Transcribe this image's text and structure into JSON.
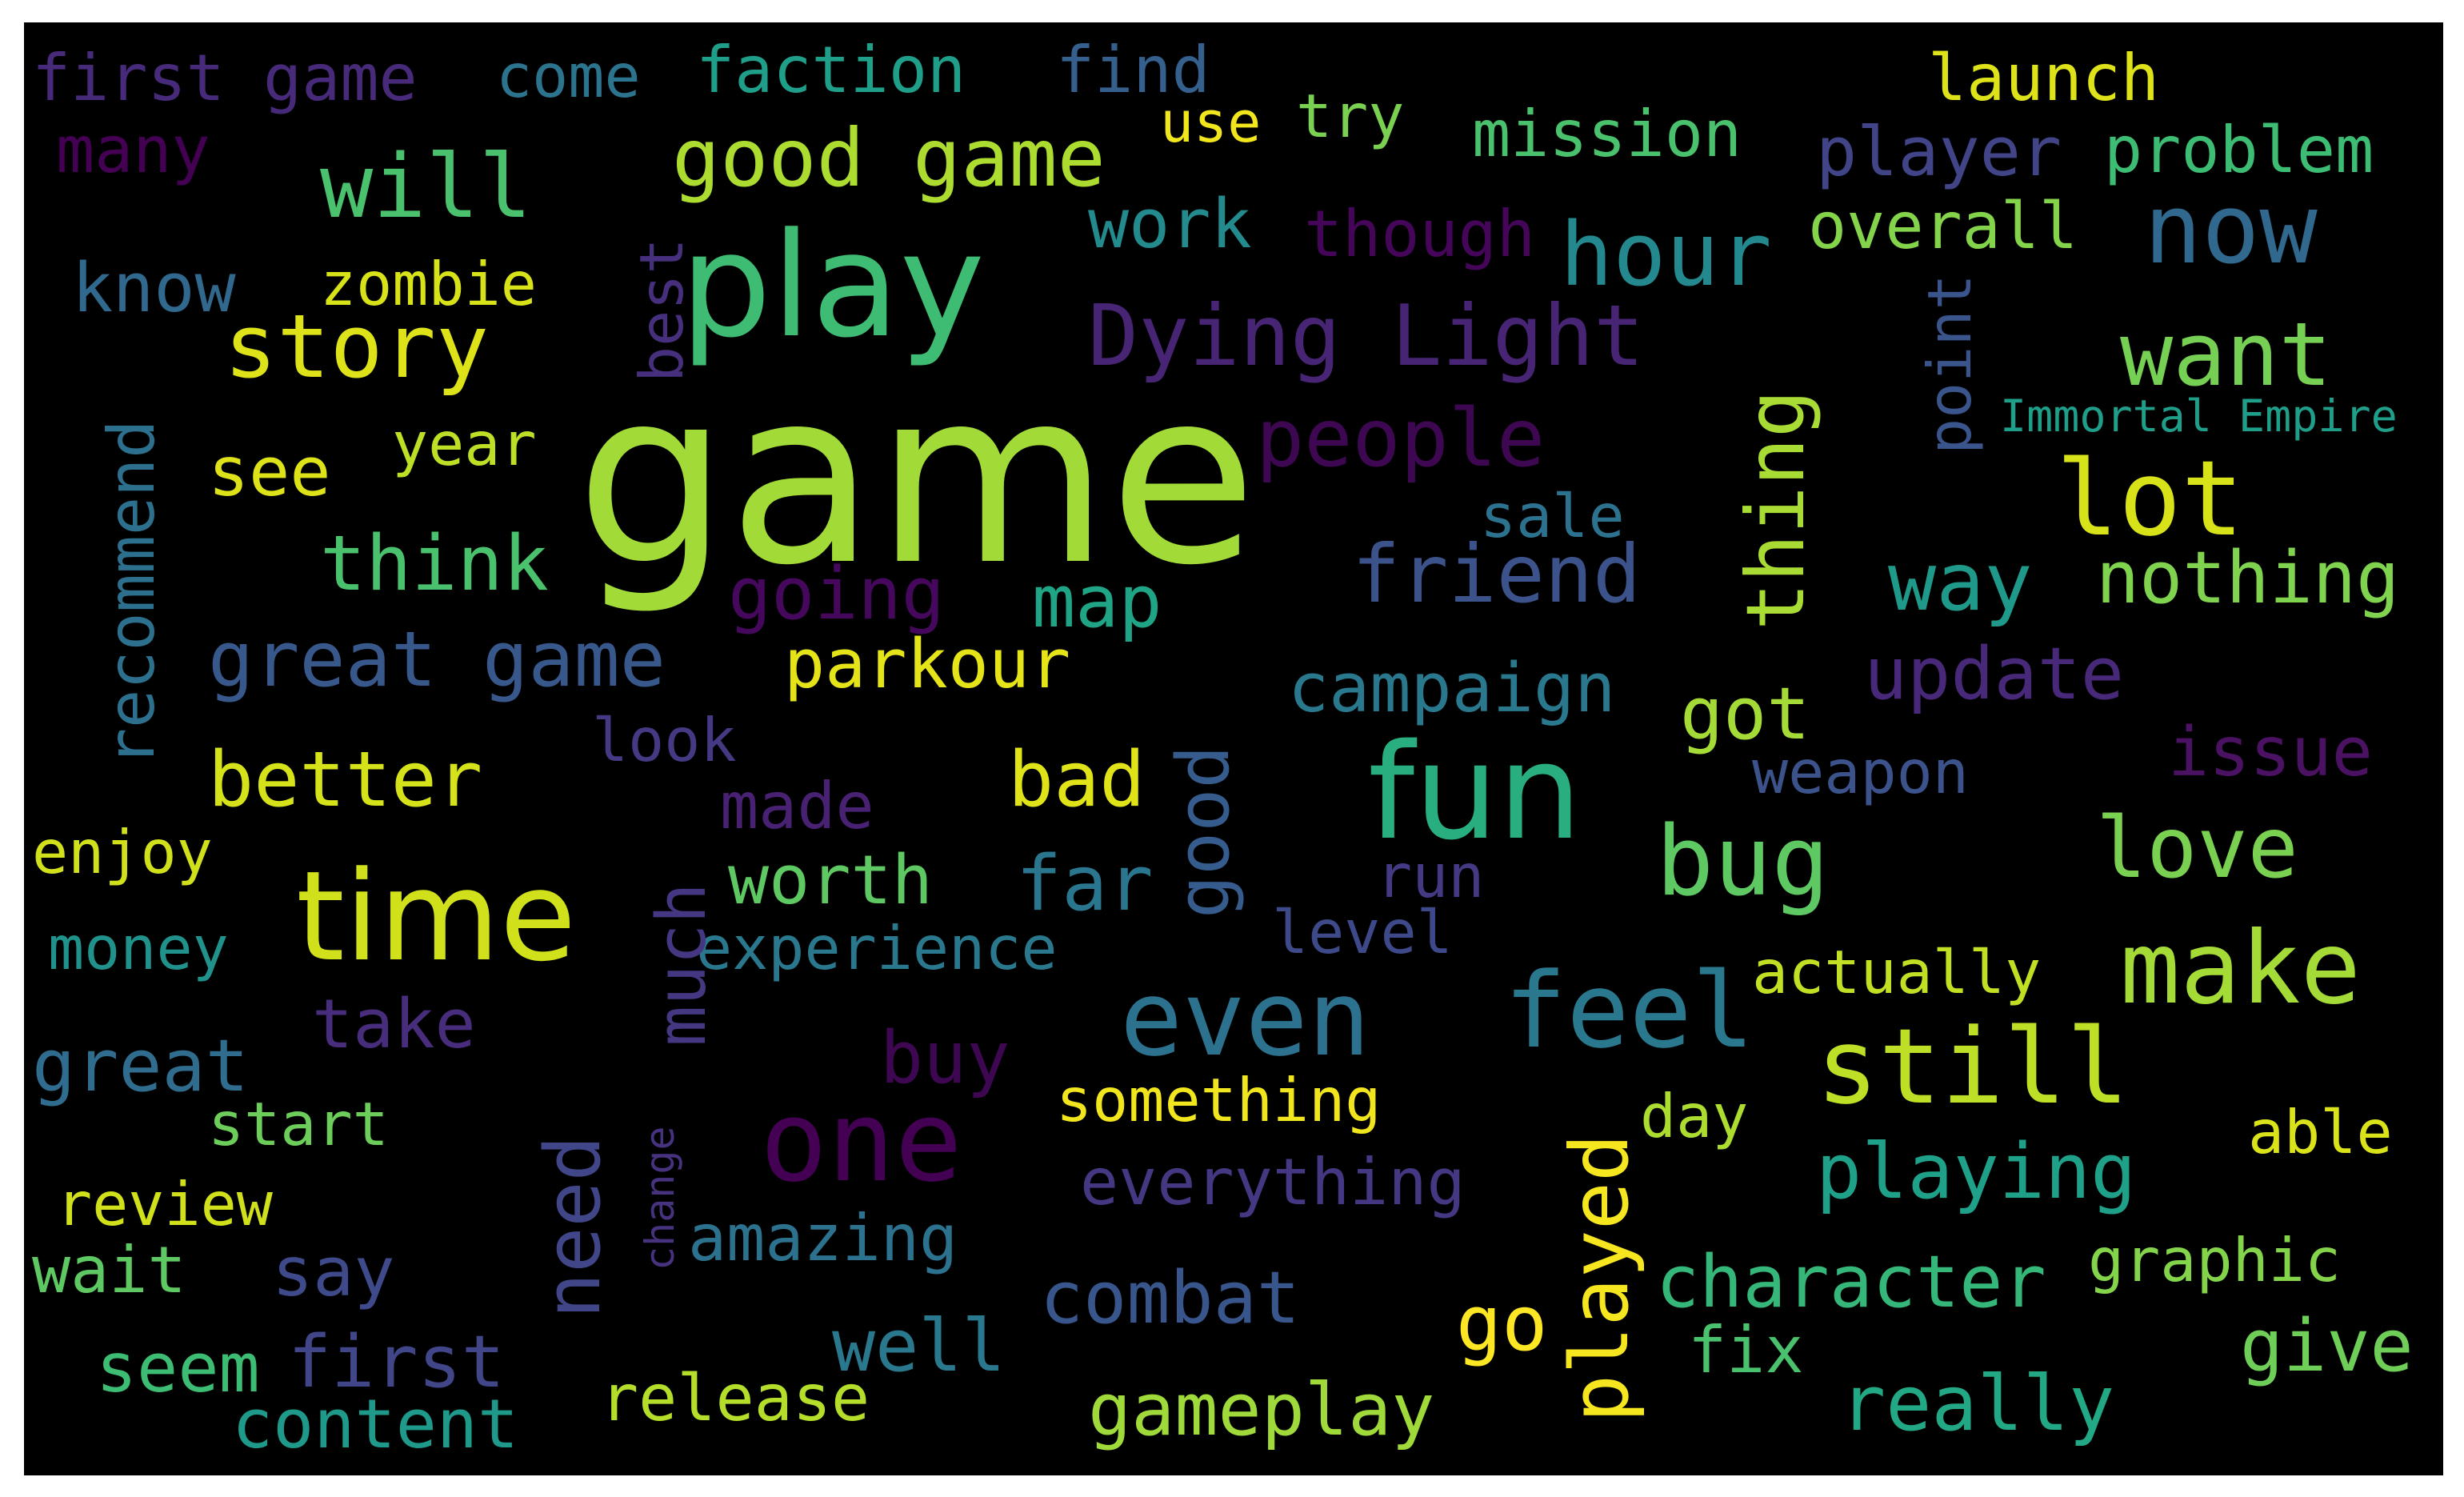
{
  "palette": {
    "background": "#000000",
    "page": "#ffffff"
  },
  "words": [
    {
      "text": "game",
      "color": "#a2da37"
    },
    {
      "text": "play",
      "color": "#3fbc73"
    },
    {
      "text": "fun",
      "color": "#29af7f"
    },
    {
      "text": "time",
      "color": "#d0e11c"
    },
    {
      "text": "one",
      "color": "#440154"
    },
    {
      "text": "even",
      "color": "#2c728e"
    },
    {
      "text": "feel",
      "color": "#2a788e"
    },
    {
      "text": "still",
      "color": "#bddf26"
    },
    {
      "text": "make",
      "color": "#a5db36"
    },
    {
      "text": "lot",
      "color": "#d8e219"
    },
    {
      "text": "now",
      "color": "#31688e"
    },
    {
      "text": "bug",
      "color": "#5ec962"
    },
    {
      "text": "story",
      "color": "#dde318"
    },
    {
      "text": "hour",
      "color": "#23898e"
    },
    {
      "text": "will",
      "color": "#4ac16d"
    },
    {
      "text": "want",
      "color": "#75d054"
    },
    {
      "text": "Dying Light",
      "color": "#482475"
    },
    {
      "text": "good game",
      "color": "#addc30"
    },
    {
      "text": "friend",
      "color": "#3b528b"
    },
    {
      "text": "think",
      "color": "#4ac16d"
    },
    {
      "text": "way",
      "color": "#1f9a8a"
    },
    {
      "text": "love",
      "color": "#7ad151"
    },
    {
      "text": "better",
      "color": "#d5e21a"
    },
    {
      "text": "people",
      "color": "#3e0751"
    },
    {
      "text": "great game",
      "color": "#38588c"
    },
    {
      "text": "map",
      "color": "#20a486"
    },
    {
      "text": "going",
      "color": "#46085c"
    },
    {
      "text": "nothing",
      "color": "#7fd34e"
    },
    {
      "text": "playing",
      "color": "#1fa088"
    },
    {
      "text": "far",
      "color": "#2a768e"
    },
    {
      "text": "worth",
      "color": "#5ec962"
    },
    {
      "text": "bad",
      "color": "#dfe318"
    },
    {
      "text": "got",
      "color": "#a5db36"
    },
    {
      "text": "great",
      "color": "#2f6c8e"
    },
    {
      "text": "take",
      "color": "#472d7b"
    },
    {
      "text": "buy",
      "color": "#3e0751"
    },
    {
      "text": "update",
      "color": "#482878"
    },
    {
      "text": "issue",
      "color": "#4b1163"
    },
    {
      "text": "campaign",
      "color": "#2a788e"
    },
    {
      "text": "parkour",
      "color": "#e5e419"
    },
    {
      "text": "work",
      "color": "#238a8d"
    },
    {
      "text": "story",
      "color": "#dde318"
    },
    {
      "text": "mission",
      "color": "#4ac16d"
    },
    {
      "text": "player",
      "color": "#414487"
    },
    {
      "text": "problem",
      "color": "#3dbc74"
    },
    {
      "text": "overall",
      "color": "#84d44b"
    },
    {
      "text": "launch",
      "color": "#dde318"
    },
    {
      "text": "faction",
      "color": "#1f9e89"
    },
    {
      "text": "find",
      "color": "#355f8d"
    },
    {
      "text": "first game",
      "color": "#472a7a"
    },
    {
      "text": "come",
      "color": "#2c738e"
    },
    {
      "text": "try",
      "color": "#7ad151"
    },
    {
      "text": "use",
      "color": "#f1e51d"
    },
    {
      "text": "many",
      "color": "#440154"
    },
    {
      "text": "know",
      "color": "#31688e"
    },
    {
      "text": "zombie",
      "color": "#d8e219"
    },
    {
      "text": "though",
      "color": "#450559"
    },
    {
      "text": "see",
      "color": "#dde318"
    },
    {
      "text": "year",
      "color": "#bddf26"
    },
    {
      "text": "sale",
      "color": "#2c728e"
    },
    {
      "text": "look",
      "color": "#443983"
    },
    {
      "text": "made",
      "color": "#482173"
    },
    {
      "text": "weapon",
      "color": "#3b528b"
    },
    {
      "text": "enjoy",
      "color": "#d0e11c"
    },
    {
      "text": "money",
      "color": "#21918c"
    },
    {
      "text": "experience",
      "color": "#2a788e"
    },
    {
      "text": "level",
      "color": "#3e4989"
    },
    {
      "text": "run",
      "color": "#443a83"
    },
    {
      "text": "actually",
      "color": "#c2df23"
    },
    {
      "text": "start",
      "color": "#6ccd5a"
    },
    {
      "text": "something",
      "color": "#f1e51d"
    },
    {
      "text": "day",
      "color": "#addc30"
    },
    {
      "text": "able",
      "color": "#dae319"
    },
    {
      "text": "review",
      "color": "#d0e11c"
    },
    {
      "text": "amazing",
      "color": "#2c728e"
    },
    {
      "text": "everything",
      "color": "#453781"
    },
    {
      "text": "graphic",
      "color": "#84d44b"
    },
    {
      "text": "wait",
      "color": "#5ec962"
    },
    {
      "text": "say",
      "color": "#3e4a89"
    },
    {
      "text": "combat",
      "color": "#39568c"
    },
    {
      "text": "character",
      "color": "#35b779"
    },
    {
      "text": "go",
      "color": "#fde725"
    },
    {
      "text": "well",
      "color": "#2a788e"
    },
    {
      "text": "fix",
      "color": "#4ac16d"
    },
    {
      "text": "give",
      "color": "#6ece58"
    },
    {
      "text": "seem",
      "color": "#3dbc74"
    },
    {
      "text": "first",
      "color": "#404688"
    },
    {
      "text": "release",
      "color": "#b5de2b"
    },
    {
      "text": "content",
      "color": "#1f9a8a"
    },
    {
      "text": "gameplay",
      "color": "#9fda3a"
    },
    {
      "text": "really",
      "color": "#22a884"
    },
    {
      "text": "Immortal Empire",
      "color": "#1f9e89"
    },
    {
      "text": "recommend",
      "color": "#2d708e"
    },
    {
      "text": "best",
      "color": "#46307e"
    },
    {
      "text": "much",
      "color": "#453781"
    },
    {
      "text": "good",
      "color": "#365c8d"
    },
    {
      "text": "thing",
      "color": "#a8db34"
    },
    {
      "text": "point",
      "color": "#3a548c"
    },
    {
      "text": "need",
      "color": "#404688"
    },
    {
      "text": "change",
      "color": "#46327e"
    },
    {
      "text": "played",
      "color": "#f6e620"
    }
  ]
}
